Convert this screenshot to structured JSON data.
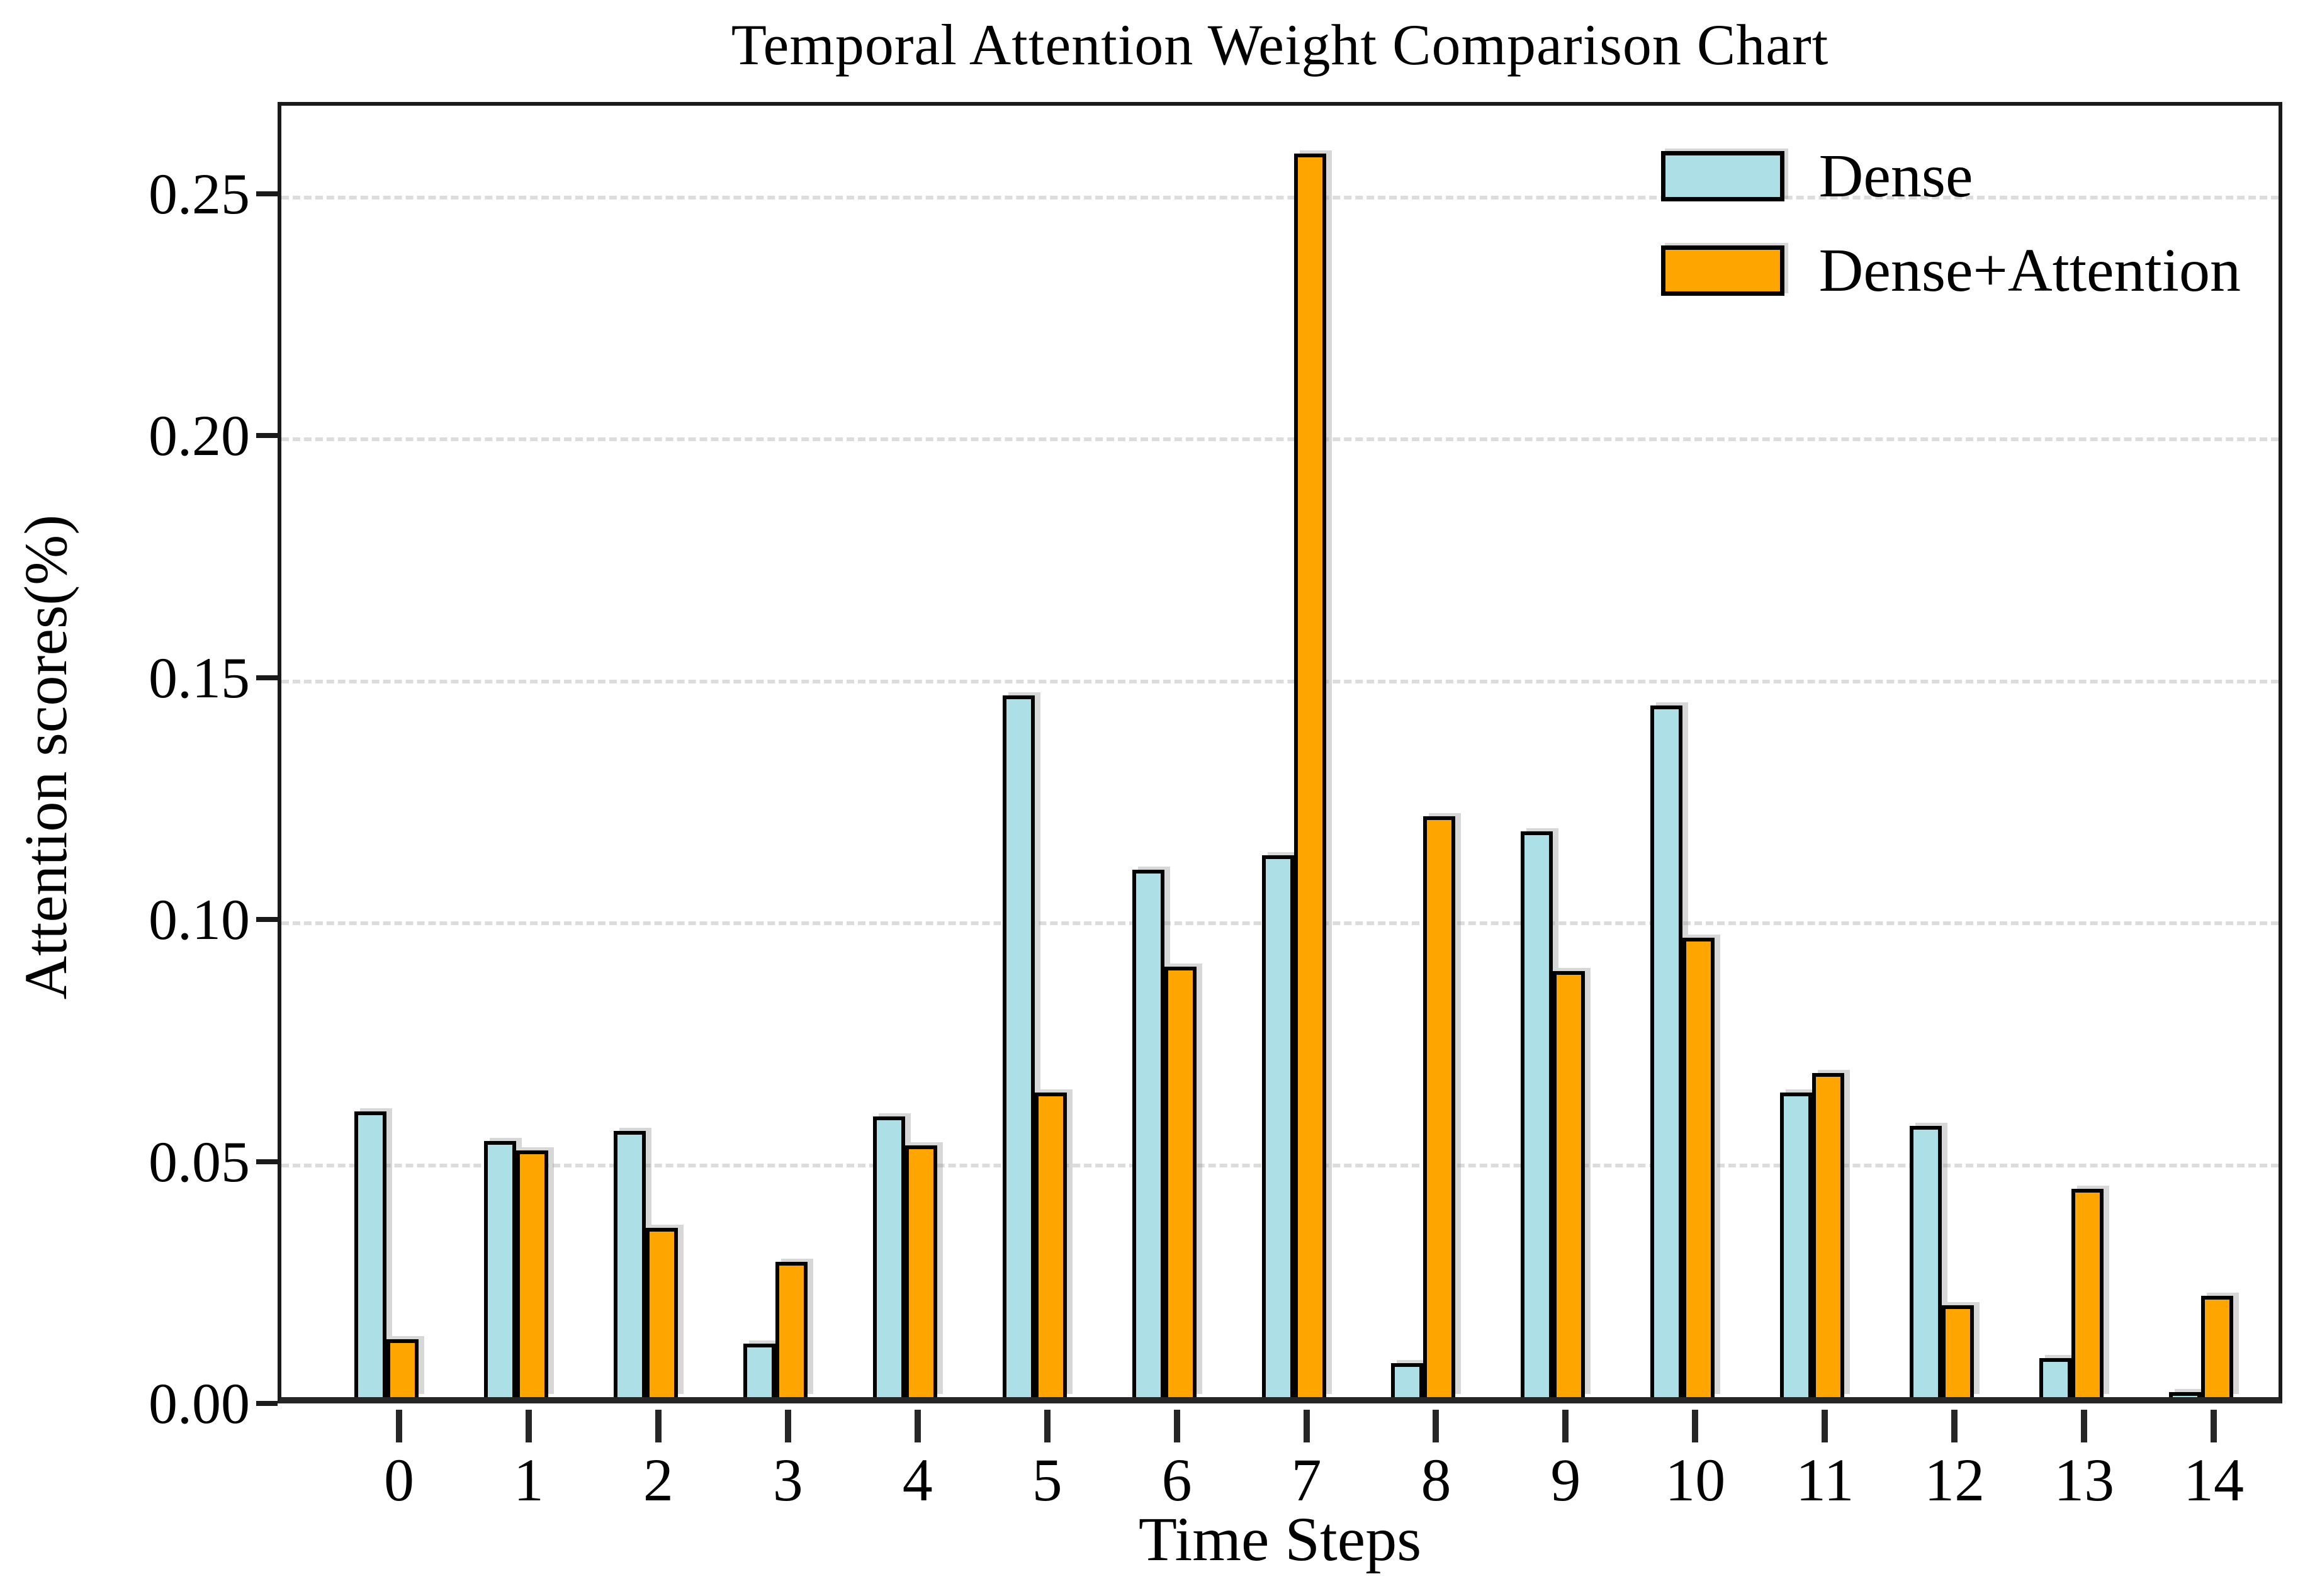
{
  "chart_data": {
    "type": "bar",
    "title": "Temporal Attention Weight Comparison Chart",
    "xlabel": "Time Steps",
    "ylabel": "Attention scores(%)",
    "categories": [
      "0",
      "1",
      "2",
      "3",
      "4",
      "5",
      "6",
      "7",
      "8",
      "9",
      "10",
      "11",
      "12",
      "13",
      "14"
    ],
    "series": [
      {
        "name": "Dense",
        "color": "#ADE0E6",
        "values": [
          0.059,
          0.053,
          0.055,
          0.011,
          0.058,
          0.145,
          0.109,
          0.112,
          0.007,
          0.117,
          0.143,
          0.063,
          0.056,
          0.008,
          0.001
        ]
      },
      {
        "name": "Dense+Attention",
        "color": "#FFA500",
        "values": [
          0.012,
          0.051,
          0.035,
          0.028,
          0.052,
          0.063,
          0.089,
          0.257,
          0.12,
          0.088,
          0.095,
          0.067,
          0.019,
          0.043,
          0.021
        ]
      }
    ],
    "ytick_labels": [
      "0.00",
      "0.05",
      "0.10",
      "0.15",
      "0.20",
      "0.25"
    ],
    "ytick_values": [
      0.0,
      0.05,
      0.1,
      0.15,
      0.2,
      0.25
    ],
    "ylim": [
      0,
      0.269
    ],
    "grid": "horizontal-dashed",
    "grid_color": "#DCDCDC",
    "edge_color": "#000000",
    "legend_position": "upper-right"
  }
}
